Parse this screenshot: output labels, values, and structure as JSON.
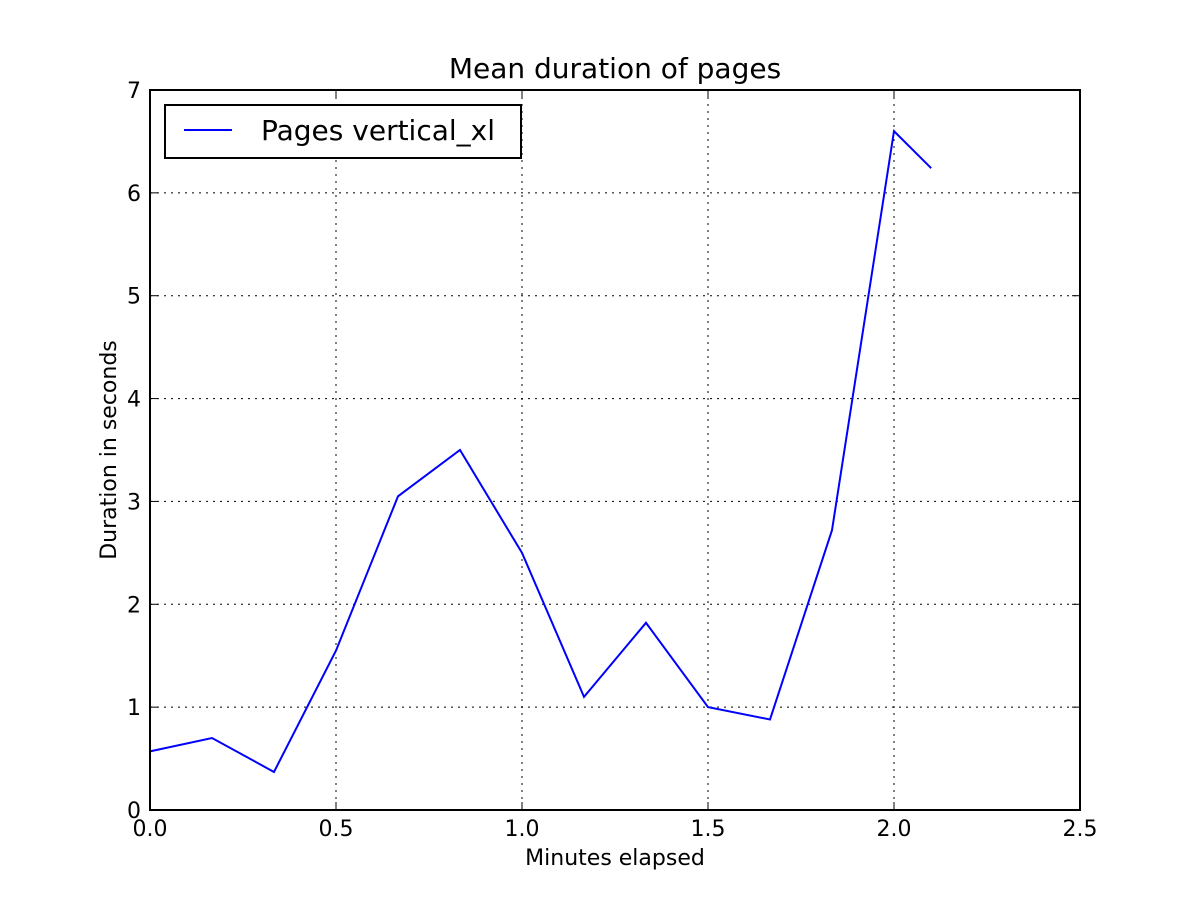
{
  "chart_data": {
    "type": "line",
    "title": "Mean duration of pages",
    "xlabel": "Minutes elapsed",
    "ylabel": "Duration in seconds",
    "xlim": [
      0.0,
      2.5
    ],
    "ylim": [
      0,
      7
    ],
    "x_ticks": [
      0.0,
      0.5,
      1.0,
      1.5,
      2.0,
      2.5
    ],
    "x_tick_labels": [
      "0.0",
      "0.5",
      "1.0",
      "1.5",
      "2.0",
      "2.5"
    ],
    "y_ticks": [
      0,
      1,
      2,
      3,
      4,
      5,
      6,
      7
    ],
    "y_tick_labels": [
      "0",
      "1",
      "2",
      "3",
      "4",
      "5",
      "6",
      "7"
    ],
    "grid": true,
    "legend_position": "top-left",
    "series": [
      {
        "name": "Pages vertical_xl",
        "color": "#0000ff",
        "x": [
          0.0,
          0.1667,
          0.3333,
          0.5,
          0.6667,
          0.8333,
          1.0,
          1.1667,
          1.3333,
          1.5,
          1.6667,
          1.8333,
          2.0,
          2.1
        ],
        "y": [
          0.57,
          0.7,
          0.37,
          1.55,
          3.05,
          3.5,
          2.5,
          1.1,
          1.82,
          1.0,
          0.88,
          2.72,
          6.6,
          6.24
        ]
      }
    ]
  }
}
